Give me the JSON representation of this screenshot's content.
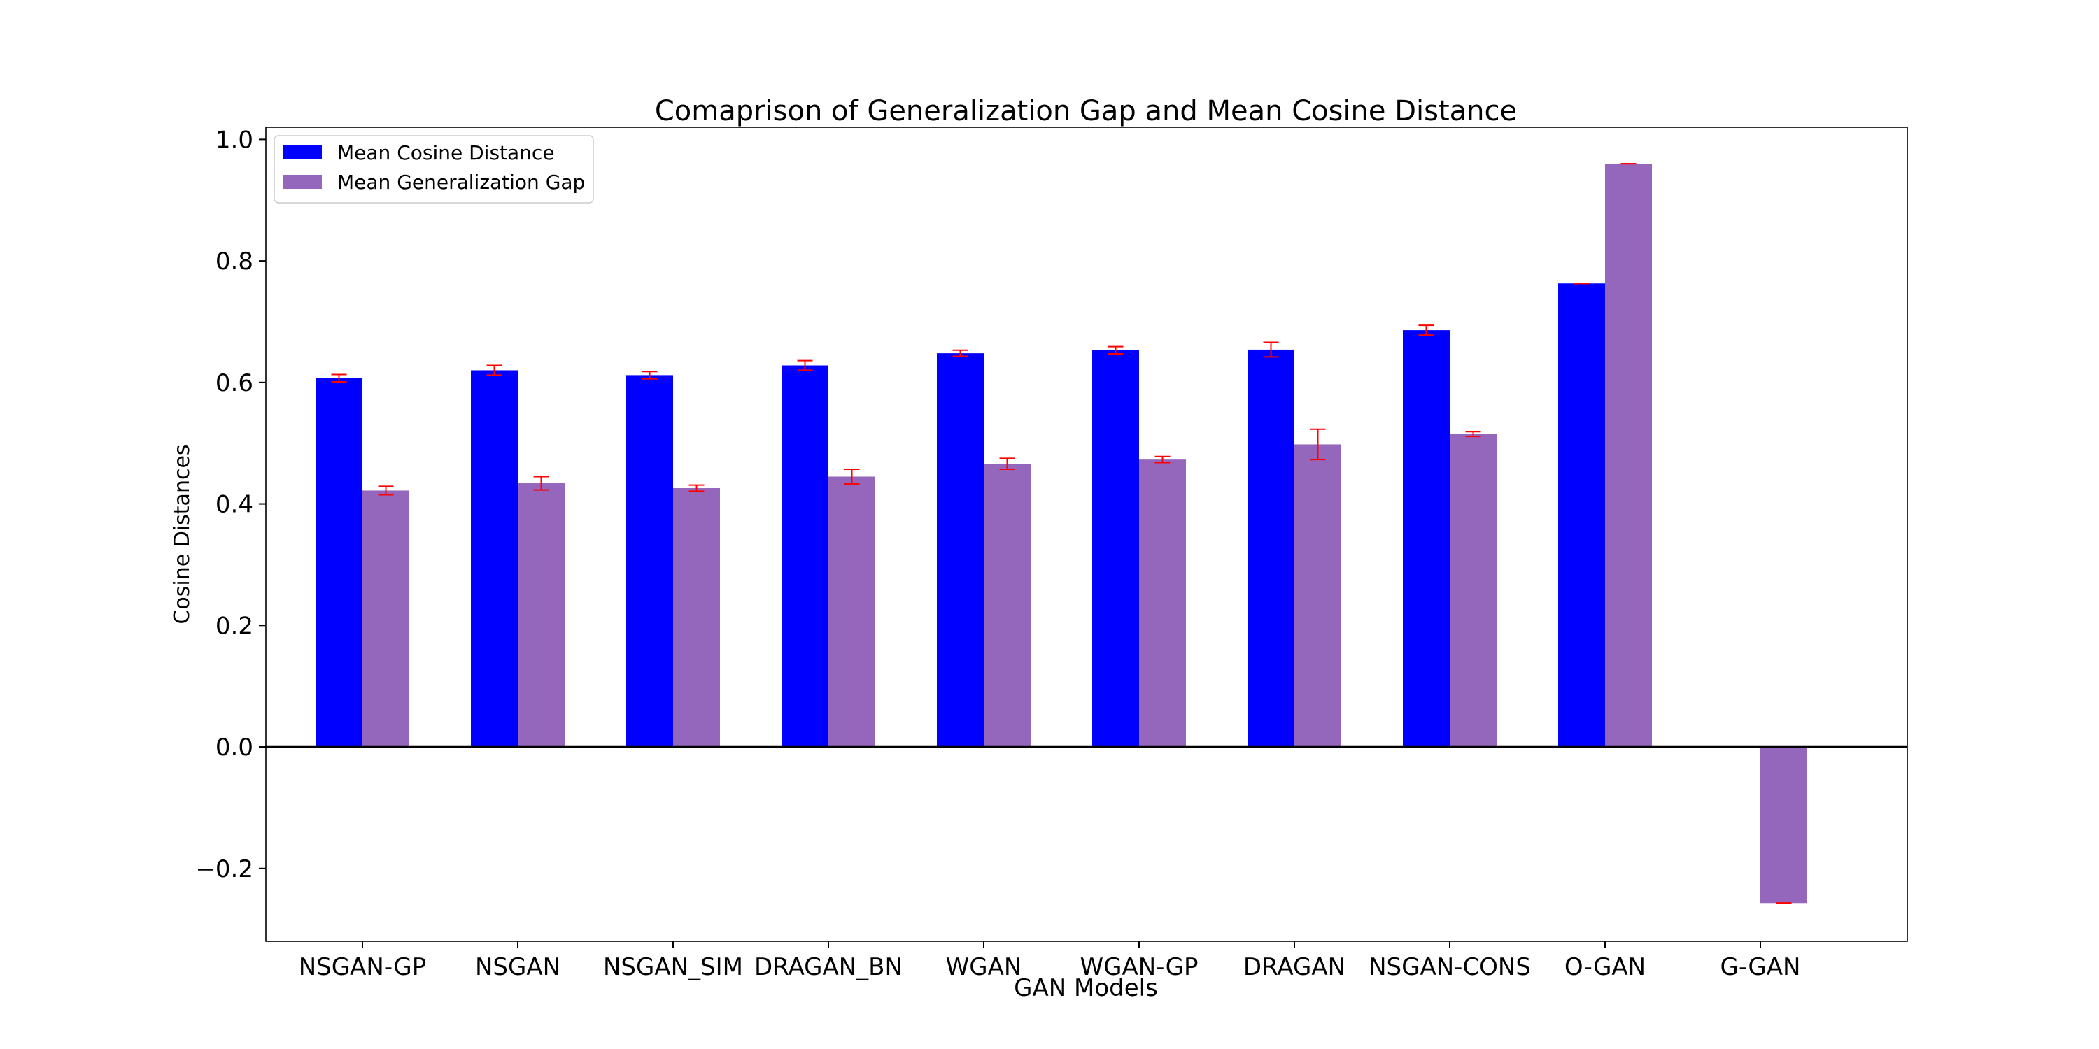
{
  "chart_data": {
    "type": "bar",
    "title": "Comaprison of Generalization Gap and Mean Cosine Distance",
    "xlabel": "GAN Models",
    "ylabel": "Cosine Distances",
    "ylim": [
      -0.32,
      1.02
    ],
    "yticks": [
      -0.2,
      0.0,
      0.2,
      0.4,
      0.6,
      0.8,
      1.0
    ],
    "ytick_labels": [
      "−0.2",
      "0.0",
      "0.2",
      "0.4",
      "0.6",
      "0.8",
      "1.0"
    ],
    "categories": [
      "NSGAN-GP",
      "NSGAN",
      "NSGAN_SIM",
      "DRAGAN_BN",
      "WGAN",
      "WGAN-GP",
      "DRAGAN",
      "NSGAN-CONS",
      "O-GAN",
      "G-GAN"
    ],
    "series": [
      {
        "name": "Mean Cosine Distance",
        "color": "#0000ff",
        "values": [
          0.607,
          0.62,
          0.612,
          0.628,
          0.648,
          0.653,
          0.654,
          0.686,
          0.763,
          0.0
        ],
        "errors": [
          0.006,
          0.008,
          0.006,
          0.008,
          0.005,
          0.006,
          0.012,
          0.008,
          0.0,
          0.0
        ]
      },
      {
        "name": "Mean Generalization Gap",
        "color": "#9467bd",
        "values": [
          0.422,
          0.434,
          0.426,
          0.445,
          0.466,
          0.473,
          0.498,
          0.515,
          0.96,
          -0.257
        ],
        "errors": [
          0.007,
          0.011,
          0.005,
          0.012,
          0.009,
          0.005,
          0.025,
          0.004,
          0.0,
          0.0
        ]
      }
    ],
    "error_color": "#ff0000",
    "grid": false,
    "legend_position": "upper-left",
    "zero_line": true
  }
}
